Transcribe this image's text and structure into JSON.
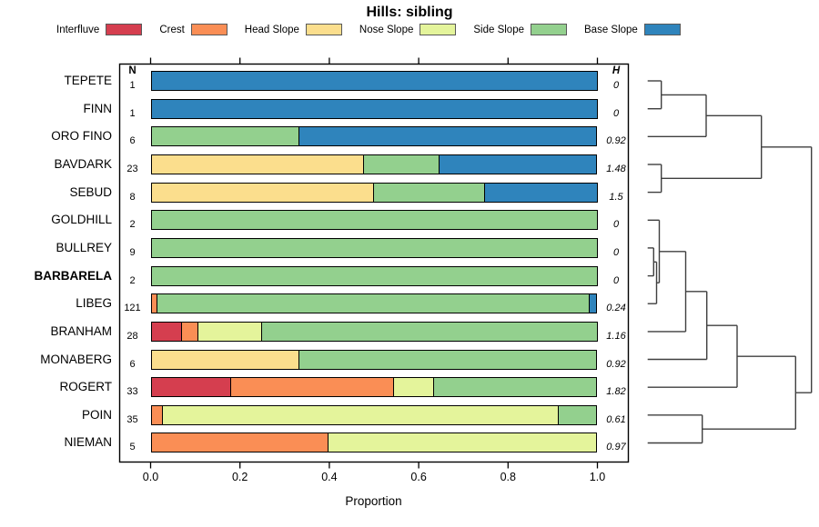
{
  "title": "Hills: sibling",
  "legend": [
    {
      "label": "Interfluve",
      "color": "#D53E4F"
    },
    {
      "label": "Crest",
      "color": "#FA8E55"
    },
    {
      "label": "Head Slope",
      "color": "#FBDE8D"
    },
    {
      "label": "Nose Slope",
      "color": "#E4F49B"
    },
    {
      "label": "Side Slope",
      "color": "#93D08E"
    },
    {
      "label": "Base Slope",
      "color": "#2F84BC"
    }
  ],
  "columns": {
    "n": "N",
    "h": "H"
  },
  "axis": {
    "label": "Proportion",
    "range": [
      0,
      1
    ],
    "ticks": [
      {
        "label": "0.0",
        "value": 0.0
      },
      {
        "label": "0.2",
        "value": 0.2
      },
      {
        "label": "0.4",
        "value": 0.4
      },
      {
        "label": "0.6",
        "value": 0.6
      },
      {
        "label": "0.8",
        "value": 0.8
      },
      {
        "label": "1.0",
        "value": 1.0
      }
    ]
  },
  "chart_data": {
    "type": "bar",
    "variant": "horizontal-stacked-proportion-with-dendrogram",
    "title": "Hills: sibling",
    "xlabel": "Proportion",
    "xlim": [
      0,
      1
    ],
    "grid": false,
    "legend_position": "top",
    "categories": [
      "Interfluve",
      "Crest",
      "Head Slope",
      "Nose Slope",
      "Side Slope",
      "Base Slope"
    ],
    "rows": [
      {
        "name": "TEPETE",
        "n": "1",
        "h": "0",
        "bold": false,
        "segments": [
          [
            "Base Slope",
            1
          ]
        ]
      },
      {
        "name": "FINN",
        "n": "1",
        "h": "0",
        "bold": false,
        "segments": [
          [
            "Base Slope",
            1
          ]
        ]
      },
      {
        "name": "ORO FINO",
        "n": "6",
        "h": "0.92",
        "bold": false,
        "segments": [
          [
            "Side Slope",
            0.333
          ],
          [
            "Base Slope",
            0.667
          ]
        ]
      },
      {
        "name": "BAVDARK",
        "n": "23",
        "h": "1.48",
        "bold": false,
        "segments": [
          [
            "Head Slope",
            0.478
          ],
          [
            "Side Slope",
            0.17
          ],
          [
            "Base Slope",
            0.352
          ]
        ]
      },
      {
        "name": "SEBUD",
        "n": "8",
        "h": "1.5",
        "bold": false,
        "segments": [
          [
            "Head Slope",
            0.5
          ],
          [
            "Side Slope",
            0.25
          ],
          [
            "Base Slope",
            0.25
          ]
        ]
      },
      {
        "name": "GOLDHILL",
        "n": "2",
        "h": "0",
        "bold": false,
        "segments": [
          [
            "Side Slope",
            1
          ]
        ]
      },
      {
        "name": "BULLREY",
        "n": "9",
        "h": "0",
        "bold": false,
        "segments": [
          [
            "Side Slope",
            1
          ]
        ]
      },
      {
        "name": "BARBARELA",
        "n": "2",
        "h": "0",
        "bold": true,
        "segments": [
          [
            "Side Slope",
            1
          ]
        ]
      },
      {
        "name": "LIBEG",
        "n": "121",
        "h": "0.24",
        "bold": false,
        "segments": [
          [
            "Crest",
            0.017
          ],
          [
            "Side Slope",
            0.966
          ],
          [
            "Base Slope",
            0.017
          ]
        ]
      },
      {
        "name": "BRANHAM",
        "n": "28",
        "h": "1.16",
        "bold": false,
        "segments": [
          [
            "Interfluve",
            0.071
          ],
          [
            "Crest",
            0.036
          ],
          [
            "Nose Slope",
            0.143
          ],
          [
            "Side Slope",
            0.75
          ]
        ]
      },
      {
        "name": "MONABERG",
        "n": "6",
        "h": "0.92",
        "bold": false,
        "segments": [
          [
            "Head Slope",
            0.333
          ],
          [
            "Side Slope",
            0.667
          ]
        ]
      },
      {
        "name": "ROGERT",
        "n": "33",
        "h": "1.82",
        "bold": false,
        "segments": [
          [
            "Interfluve",
            0.182
          ],
          [
            "Crest",
            0.364
          ],
          [
            "Nose Slope",
            0.09
          ],
          [
            "Side Slope",
            0.364
          ]
        ]
      },
      {
        "name": "POIN",
        "n": "35",
        "h": "0.61",
        "bold": false,
        "segments": [
          [
            "Crest",
            0.029
          ],
          [
            "Nose Slope",
            0.885
          ],
          [
            "Side Slope",
            0.086
          ]
        ]
      },
      {
        "name": "NIEMAN",
        "n": "5",
        "h": "0.97",
        "bold": false,
        "segments": [
          [
            "Crest",
            0.4
          ],
          [
            "Nose Slope",
            0.6
          ]
        ]
      }
    ],
    "dendrogram": {
      "note": "pixel-space segments; h = [x1, x2, y], v = [x, y1, y2]",
      "h": [
        [
          711.7,
          726.7,
          89
        ],
        [
          711.7,
          726.7,
          119.7
        ],
        [
          711.7,
          776,
          150.3
        ],
        [
          711.7,
          726.7,
          181
        ],
        [
          711.7,
          726.7,
          211.6
        ],
        [
          711.7,
          724.5,
          242.3
        ],
        [
          711.7,
          718.3,
          272.9
        ],
        [
          711.7,
          718.3,
          303.6
        ],
        [
          711.7,
          721.5,
          334.2
        ],
        [
          711.7,
          753.5,
          364.9
        ],
        [
          711.7,
          776.7,
          395.5
        ],
        [
          711.7,
          810,
          426.2
        ],
        [
          711.7,
          771.7,
          456.8
        ],
        [
          711.7,
          771.7,
          487.5
        ],
        [
          726.7,
          776,
          104.4
        ],
        [
          776,
          836.7,
          127.3
        ],
        [
          726.7,
          836.7,
          196.3
        ],
        [
          836.7,
          891.7,
          161.8
        ],
        [
          718.3,
          721.5,
          288.3
        ],
        [
          721.5,
          724.5,
          311.2
        ],
        [
          724.5,
          753.5,
          276.8
        ],
        [
          753.5,
          776.7,
          320.8
        ],
        [
          776.7,
          810,
          358.2
        ],
        [
          810,
          874.3,
          392.2
        ],
        [
          771.7,
          874.3,
          472.2
        ],
        [
          874.3,
          891.7,
          432.2
        ]
      ],
      "v": [
        [
          726.7,
          89,
          119.7
        ],
        [
          776,
          104.4,
          150.3
        ],
        [
          726.7,
          181,
          211.6
        ],
        [
          836.7,
          127.3,
          196.3
        ],
        [
          718.3,
          272.9,
          303.6
        ],
        [
          721.5,
          288.3,
          334.2
        ],
        [
          724.5,
          242.3,
          311.2
        ],
        [
          753.5,
          276.8,
          364.9
        ],
        [
          776.7,
          320.8,
          395.5
        ],
        [
          810,
          358.2,
          426.2
        ],
        [
          771.7,
          456.8,
          487.5
        ],
        [
          874.3,
          392.2,
          472.2
        ],
        [
          891.7,
          161.8,
          432.2
        ]
      ]
    }
  }
}
